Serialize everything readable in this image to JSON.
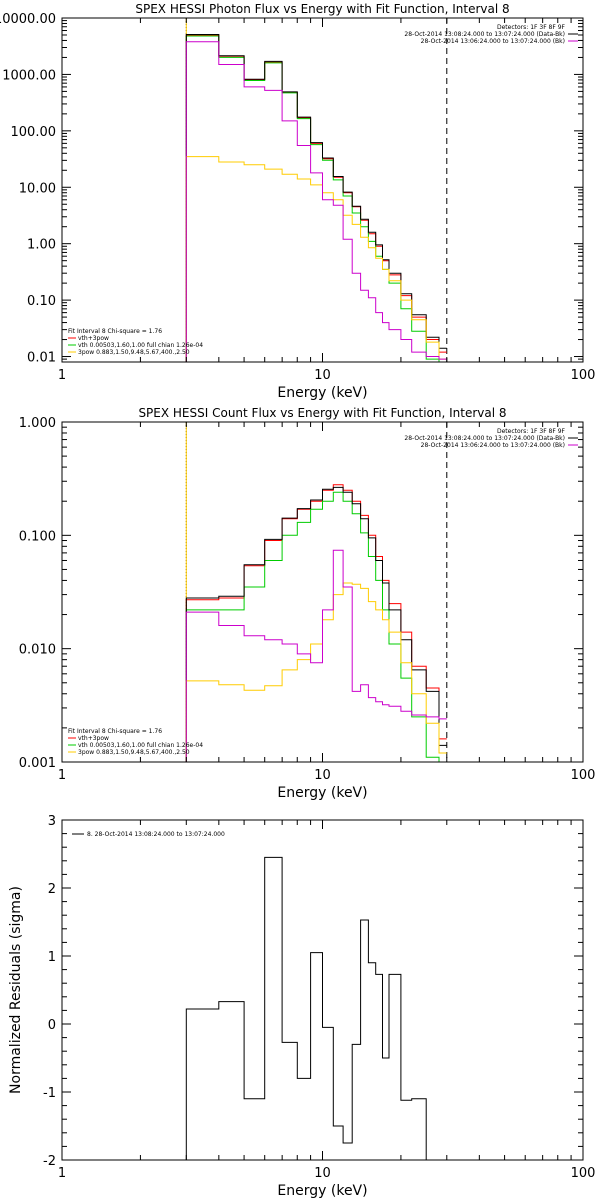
{
  "colors": {
    "data": "#000000",
    "total": "#ff0000",
    "vth": "#00cc00",
    "3pow": "#ffcc00",
    "bk": "#cc00cc"
  },
  "chart_data": [
    {
      "type": "line",
      "title": "SPEX HESSI Photon Flux vs Energy with Fit Function, Interval 8",
      "xlabel": "Energy (keV)",
      "ylabel": "",
      "xscale": "log",
      "yscale": "log",
      "xlim": [
        1,
        100
      ],
      "ylim": [
        0.008,
        10000
      ],
      "xticks": [
        {
          "v": 1,
          "label": "1"
        },
        {
          "v": 10,
          "label": "10"
        },
        {
          "v": 100,
          "label": "100"
        }
      ],
      "yticks": [
        {
          "v": 0.01,
          "label": "0.01"
        },
        {
          "v": 0.1,
          "label": "0.10"
        },
        {
          "v": 1,
          "label": "1.00"
        },
        {
          "v": 10,
          "label": "10.00"
        },
        {
          "v": 100,
          "label": "100.00"
        },
        {
          "v": 1000,
          "label": "1000.00"
        },
        {
          "v": 10000,
          "label": "10000.00"
        }
      ],
      "vlines": [
        {
          "x": 3,
          "style": "dotted",
          "color": "#000000"
        },
        {
          "x": 3,
          "style": "solid",
          "color": "#ffcc00"
        },
        {
          "x": 30,
          "style": "dashed",
          "color": "#000000"
        }
      ],
      "edges": [
        3,
        4,
        5,
        6,
        7,
        8,
        9,
        10,
        11,
        12,
        13,
        14,
        15,
        16,
        17,
        18,
        20,
        22,
        25,
        28,
        30
      ],
      "series": [
        {
          "key": "total",
          "color": "#ff0000",
          "values": [
            5000,
            2100,
            800,
            1650,
            480,
            170,
            60,
            32,
            15,
            8,
            4.5,
            2.6,
            1.5,
            0.9,
            0.5,
            0.28,
            0.12,
            0.05,
            0.02,
            0.012
          ]
        },
        {
          "key": "vth",
          "color": "#00cc00",
          "values": [
            4800,
            2000,
            780,
            1600,
            470,
            165,
            57,
            30,
            13.5,
            7,
            3.5,
            2.0,
            1.1,
            0.6,
            0.35,
            0.2,
            0.07,
            0.028,
            0.009,
            0.006
          ]
        },
        {
          "key": "data",
          "color": "#000000",
          "values": [
            5100,
            2150,
            820,
            1700,
            490,
            175,
            62,
            33,
            15.5,
            8.2,
            4.6,
            2.7,
            1.6,
            0.95,
            0.52,
            0.3,
            0.13,
            0.055,
            0.022,
            0.014
          ]
        },
        {
          "key": "3pow",
          "color": "#ffcc00",
          "values": [
            35,
            28,
            25,
            21,
            17,
            14,
            11,
            8,
            6,
            3.2,
            2.2,
            1.3,
            0.85,
            0.55,
            0.35,
            0.22,
            0.1,
            0.045,
            0.018,
            0.009
          ]
        },
        {
          "key": "bk",
          "color": "#cc00cc",
          "values": [
            3800,
            1500,
            600,
            520,
            150,
            55,
            18,
            6,
            4.8,
            1.2,
            0.3,
            0.15,
            0.11,
            0.06,
            0.04,
            0.03,
            0.02,
            0.012,
            0.01,
            0.009
          ]
        }
      ],
      "legend_top": [
        {
          "text": "Detectors: 1F 3F 8F 9F",
          "color": "#000000"
        },
        {
          "text": "28-Oct-2014 13:08:24.000 to 13:07:24.000 (Data-Bk)",
          "color": "#000000"
        },
        {
          "text": "28-Oct-2014 13:06:24.000 to 13:07:24.000 (Bk)",
          "color": "#cc00cc"
        }
      ],
      "legend_bottom": [
        {
          "text": "Fit Interval 8   Chi-square = 1.76",
          "color": "#000000"
        },
        {
          "text": "vth+3pow",
          "color": "#ff0000"
        },
        {
          "text": "vth 0.00503,1.60,1.00  full chian 1.26e-04",
          "color": "#00cc00"
        },
        {
          "text": "3pow 0.883,1.50,9.48,5.67,400.,2.50",
          "color": "#ffcc00"
        }
      ]
    },
    {
      "type": "line",
      "title": "SPEX HESSI Count Flux vs Energy with Fit Function, Interval 8",
      "xlabel": "Energy (keV)",
      "ylabel": "",
      "xscale": "log",
      "yscale": "log",
      "xlim": [
        1,
        100
      ],
      "ylim": [
        0.001,
        1
      ],
      "xticks": [
        {
          "v": 1,
          "label": "1"
        },
        {
          "v": 10,
          "label": "10"
        },
        {
          "v": 100,
          "label": "100"
        }
      ],
      "yticks": [
        {
          "v": 0.001,
          "label": "0.001"
        },
        {
          "v": 0.01,
          "label": "0.010"
        },
        {
          "v": 0.1,
          "label": "0.100"
        },
        {
          "v": 1,
          "label": "1.000"
        }
      ],
      "vlines": [
        {
          "x": 3,
          "style": "dotted",
          "color": "#000000"
        },
        {
          "x": 3,
          "style": "solid",
          "color": "#ffcc00"
        },
        {
          "x": 30,
          "style": "dashed",
          "color": "#000000"
        }
      ],
      "edges": [
        3,
        4,
        5,
        6,
        7,
        8,
        9,
        10,
        11,
        12,
        13,
        14,
        15,
        16,
        17,
        18,
        20,
        22,
        25,
        28,
        30
      ],
      "series": [
        {
          "key": "total",
          "color": "#ff0000",
          "values": [
            0.027,
            0.028,
            0.054,
            0.09,
            0.14,
            0.17,
            0.2,
            0.25,
            0.28,
            0.25,
            0.2,
            0.15,
            0.1,
            0.065,
            0.04,
            0.025,
            0.014,
            0.007,
            0.0045,
            0.0016
          ]
        },
        {
          "key": "vth",
          "color": "#00cc00",
          "values": [
            0.022,
            0.022,
            0.035,
            0.06,
            0.1,
            0.13,
            0.17,
            0.2,
            0.24,
            0.2,
            0.155,
            0.105,
            0.065,
            0.04,
            0.022,
            0.011,
            0.0055,
            0.0025,
            0.0011,
            0.0008
          ]
        },
        {
          "key": "data",
          "color": "#000000",
          "values": [
            0.028,
            0.029,
            0.055,
            0.092,
            0.142,
            0.172,
            0.205,
            0.255,
            0.265,
            0.24,
            0.19,
            0.14,
            0.095,
            0.06,
            0.038,
            0.022,
            0.012,
            0.0065,
            0.0042,
            0.0014
          ]
        },
        {
          "key": "3pow",
          "color": "#ffcc00",
          "values": [
            0.0052,
            0.0048,
            0.0043,
            0.0047,
            0.0065,
            0.008,
            0.011,
            0.018,
            0.03,
            0.038,
            0.037,
            0.034,
            0.026,
            0.022,
            0.018,
            0.014,
            0.0075,
            0.004,
            0.0022,
            0.0012
          ]
        },
        {
          "key": "bk",
          "color": "#cc00cc",
          "values": [
            0.021,
            0.016,
            0.013,
            0.012,
            0.011,
            0.009,
            0.0075,
            0.022,
            0.074,
            0.035,
            0.0042,
            0.0048,
            0.0037,
            0.0034,
            0.0032,
            0.0031,
            0.0028,
            0.0026,
            0.0025,
            0.0024
          ]
        }
      ],
      "legend_top": [
        {
          "text": "Detectors: 1F 3F 8F 9F",
          "color": "#000000"
        },
        {
          "text": "28-Oct-2014 13:08:24.000 to 13:07:24.000 (Data-Bk)",
          "color": "#000000"
        },
        {
          "text": "28-Oct-2014 13:06:24.000 to 13:07:24.000 (Bk)",
          "color": "#cc00cc"
        }
      ],
      "legend_bottom": [
        {
          "text": "Fit Interval 8   Chi-square = 1.76",
          "color": "#000000"
        },
        {
          "text": "vth+3pow",
          "color": "#ff0000"
        },
        {
          "text": "vth 0.00503,1.60,1.00  full chian 1.26e-04",
          "color": "#00cc00"
        },
        {
          "text": "3pow 0.883,1.50,9.48,5.67,400.,2.50",
          "color": "#ffcc00"
        }
      ]
    },
    {
      "type": "line",
      "title": "",
      "xlabel": "Energy (keV)",
      "ylabel": "Normalized Residuals (sigma)",
      "xscale": "log",
      "yscale": "linear",
      "xlim": [
        1,
        100
      ],
      "ylim": [
        -2,
        3
      ],
      "xticks": [
        {
          "v": 1,
          "label": "1"
        },
        {
          "v": 10,
          "label": "10"
        },
        {
          "v": 100,
          "label": "100"
        }
      ],
      "yticks": [
        {
          "v": -2,
          "label": "-2"
        },
        {
          "v": -1,
          "label": "-1"
        },
        {
          "v": 0,
          "label": "0"
        },
        {
          "v": 1,
          "label": "1"
        },
        {
          "v": 2,
          "label": "2"
        },
        {
          "v": 3,
          "label": "3"
        }
      ],
      "vlines": [],
      "edges": [
        3,
        4,
        5,
        6,
        7,
        8,
        9,
        10,
        11,
        12,
        13,
        14,
        15,
        16,
        17,
        18,
        20,
        22,
        25,
        28,
        30
      ],
      "series": [
        {
          "key": "resid",
          "color": "#000000",
          "values": [
            0.22,
            0.33,
            -1.1,
            2.45,
            -0.27,
            -0.8,
            1.05,
            -0.05,
            -1.5,
            -1.75,
            -0.3,
            1.53,
            0.9,
            0.73,
            -0.5,
            0.73,
            -1.12,
            -1.1,
            -2.0,
            -2.0
          ]
        }
      ],
      "legend_top": [
        {
          "text": "8. 28-Oct-2014 13:08:24.000 to 13:07:24.000",
          "color": "#000000"
        }
      ],
      "legend_bottom": []
    }
  ]
}
